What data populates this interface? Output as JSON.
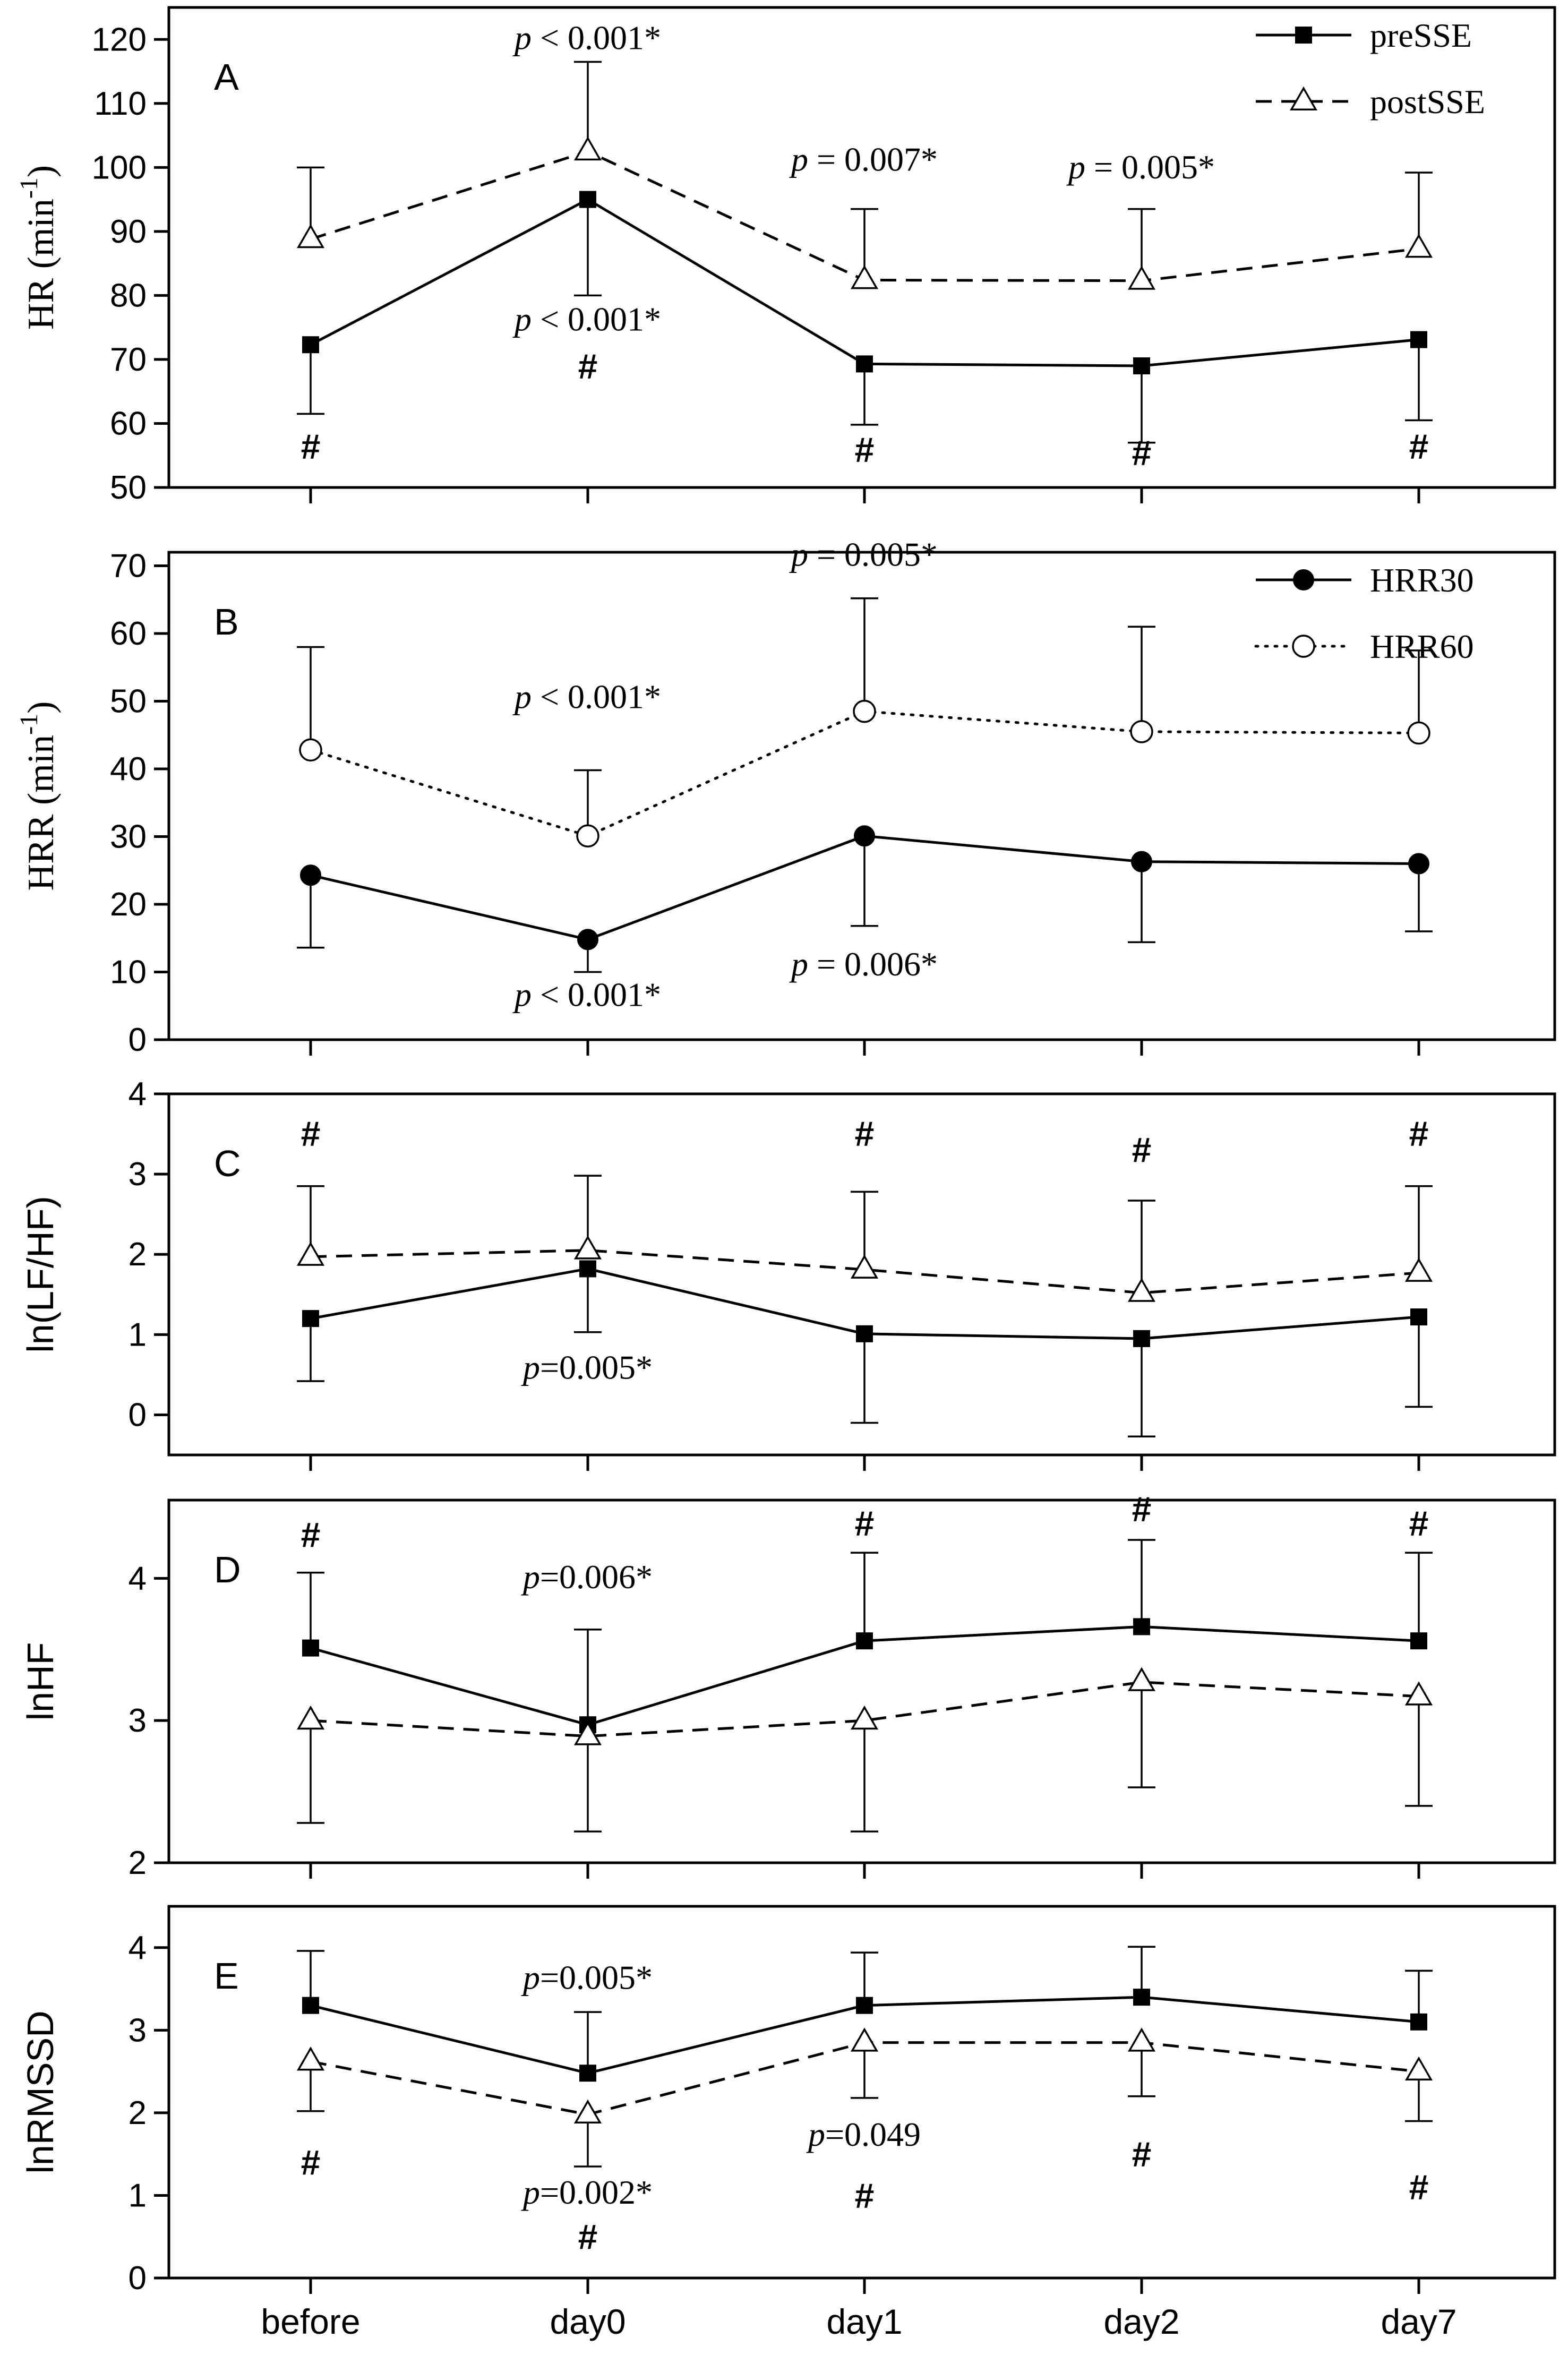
{
  "x_categories": [
    "before",
    "day0",
    "day1",
    "day2",
    "day7"
  ],
  "chart_data": [
    {
      "type": "line",
      "panel_label": "A",
      "ylabel": "HR (min",
      "ylabel_sup": "-1",
      "ylabel_close": ")",
      "ylim": [
        50,
        125
      ],
      "yticks": [
        50,
        60,
        70,
        80,
        90,
        100,
        110,
        120
      ],
      "categories": [
        "before",
        "day0",
        "day1",
        "day2",
        "day7"
      ],
      "series": [
        {
          "name": "preSSE",
          "marker": "square-filled",
          "dash": "solid",
          "values": [
            72.3,
            95,
            69.3,
            69,
            73.1
          ],
          "err_upper": [
            null,
            null,
            null,
            null,
            null
          ],
          "err_lower": [
            61.5,
            80,
            59.8,
            57,
            60.5
          ]
        },
        {
          "name": "postSSE",
          "marker": "triangle-open",
          "dash": "dashed",
          "values": [
            88.8,
            102.5,
            82.4,
            82.3,
            87.3
          ],
          "err_upper": [
            100,
            116.5,
            93.5,
            93.5,
            99.2
          ],
          "err_lower": [
            null,
            null,
            null,
            null,
            null
          ]
        }
      ],
      "legend": {
        "placement": "top-right",
        "entries": [
          "preSSE",
          "postSSE"
        ]
      },
      "annotations": [
        {
          "prefix": "p",
          "text": " < 0.001*",
          "x": 1,
          "y": 118.5
        },
        {
          "prefix": "p",
          "text": " = 0.007*",
          "x": 2,
          "y": 99.5
        },
        {
          "prefix": "p",
          "text": " = 0.005*",
          "x": 3,
          "y": 98.3
        },
        {
          "prefix": "p",
          "text": " < 0.001*",
          "x": 1,
          "y": 74.5
        },
        {
          "prefix": "",
          "text": "#",
          "x": 0,
          "y": 54.5
        },
        {
          "prefix": "",
          "text": "#",
          "x": 1,
          "y": 67
        },
        {
          "prefix": "",
          "text": "#",
          "x": 2,
          "y": 54
        },
        {
          "prefix": "",
          "text": "#",
          "x": 3,
          "y": 53.5
        },
        {
          "prefix": "",
          "text": "#",
          "x": 4,
          "y": 54.5
        }
      ]
    },
    {
      "type": "line",
      "panel_label": "B",
      "ylabel": "HRR (min",
      "ylabel_sup": "-1",
      "ylabel_close": ")",
      "ylim": [
        0,
        72
      ],
      "yticks": [
        0,
        10,
        20,
        30,
        40,
        50,
        60,
        70
      ],
      "categories": [
        "before",
        "day0",
        "day1",
        "day2",
        "day7"
      ],
      "series": [
        {
          "name": "HRR30",
          "marker": "circle-filled",
          "dash": "solid",
          "values": [
            24.3,
            14.8,
            30.1,
            26.3,
            26
          ],
          "err_upper": [
            null,
            null,
            null,
            null,
            null
          ],
          "err_lower": [
            13.6,
            10,
            16.8,
            14.4,
            16
          ]
        },
        {
          "name": "HRR60",
          "marker": "circle-open",
          "dash": "dotted",
          "values": [
            42.8,
            30.1,
            48.5,
            45.5,
            45.3
          ],
          "err_upper": [
            58,
            39.8,
            65.2,
            61,
            57.5
          ],
          "err_lower": [
            null,
            null,
            null,
            null,
            null
          ]
        }
      ],
      "legend": {
        "placement": "top-right",
        "entries": [
          "HRR30",
          "HRR60"
        ]
      },
      "annotations": [
        {
          "prefix": "p",
          "text": " = 0.005*",
          "x": 2,
          "y": 70
        },
        {
          "prefix": "p",
          "text": " < 0.001*",
          "x": 1,
          "y": 49
        },
        {
          "prefix": "p",
          "text": " < 0.001*",
          "x": 1,
          "y": 5
        },
        {
          "prefix": "p",
          "text": " = 0.006*",
          "x": 2,
          "y": 9.5
        }
      ]
    },
    {
      "type": "line",
      "panel_label": "C",
      "ylabel": "ln(LF/HF)",
      "ylim": [
        -0.5,
        4
      ],
      "yticks": [
        0,
        1,
        2,
        3,
        4
      ],
      "categories": [
        "before",
        "day0",
        "day1",
        "day2",
        "day7"
      ],
      "series": [
        {
          "name": "preSSE",
          "marker": "square-filled",
          "dash": "solid",
          "values": [
            1.2,
            1.82,
            1.01,
            0.95,
            1.22
          ],
          "err_upper": [
            null,
            null,
            null,
            null,
            null
          ],
          "err_lower": [
            0.42,
            1.03,
            -0.1,
            -0.27,
            0.1
          ]
        },
        {
          "name": "postSSE",
          "marker": "triangle-open",
          "dash": "dashed",
          "values": [
            1.97,
            2.05,
            1.81,
            1.52,
            1.77
          ],
          "err_upper": [
            2.85,
            2.98,
            2.78,
            2.67,
            2.85
          ],
          "err_lower": [
            null,
            null,
            null,
            null,
            null
          ]
        }
      ],
      "annotations": [
        {
          "prefix": "",
          "text": "#",
          "x": 0,
          "y": 3.35
        },
        {
          "prefix": "",
          "text": "#",
          "x": 2,
          "y": 3.35
        },
        {
          "prefix": "",
          "text": "#",
          "x": 3,
          "y": 3.15
        },
        {
          "prefix": "",
          "text": "#",
          "x": 4,
          "y": 3.35
        },
        {
          "prefix": "p",
          "text": "=0.005*",
          "x": 1,
          "y": 0.45
        }
      ]
    },
    {
      "type": "line",
      "panel_label": "D",
      "ylabel": "lnHF",
      "ylim": [
        2,
        4.55
      ],
      "yticks": [
        2,
        3,
        4
      ],
      "categories": [
        "before",
        "day0",
        "day1",
        "day2",
        "day7"
      ],
      "series": [
        {
          "name": "preSSE",
          "marker": "square-filled",
          "dash": "solid",
          "values": [
            3.51,
            2.97,
            3.56,
            3.66,
            3.56
          ],
          "err_upper": [
            4.04,
            3.64,
            4.18,
            4.27,
            4.18
          ],
          "err_lower": [
            null,
            null,
            null,
            null,
            null
          ]
        },
        {
          "name": "postSSE",
          "marker": "triangle-open",
          "dash": "dashed",
          "values": [
            3,
            2.89,
            3,
            3.27,
            3.17
          ],
          "err_upper": [
            null,
            null,
            null,
            null,
            null
          ],
          "err_lower": [
            2.28,
            2.22,
            2.22,
            2.53,
            2.4
          ]
        }
      ],
      "annotations": [
        {
          "prefix": "",
          "text": "#",
          "x": 0,
          "y": 4.22
        },
        {
          "prefix": "",
          "text": "#",
          "x": 2,
          "y": 4.3
        },
        {
          "prefix": "",
          "text": "#",
          "x": 3,
          "y": 4.4
        },
        {
          "prefix": "",
          "text": "#",
          "x": 4,
          "y": 4.3
        },
        {
          "prefix": "p",
          "text": "=0.006*",
          "x": 1,
          "y": 3.93
        }
      ]
    },
    {
      "type": "line",
      "panel_label": "E",
      "ylabel": "lnRMSSD",
      "ylim": [
        0,
        4.5
      ],
      "yticks": [
        0,
        1,
        2,
        3,
        4
      ],
      "categories": [
        "before",
        "day0",
        "day1",
        "day2",
        "day7"
      ],
      "series": [
        {
          "name": "preSSE",
          "marker": "square-filled",
          "dash": "solid",
          "values": [
            3.3,
            2.48,
            3.3,
            3.4,
            3.1
          ],
          "err_upper": [
            3.96,
            3.22,
            3.94,
            4.01,
            3.72
          ],
          "err_lower": [
            null,
            null,
            null,
            null,
            null
          ]
        },
        {
          "name": "postSSE",
          "marker": "triangle-open",
          "dash": "dashed",
          "values": [
            2.62,
            1.98,
            2.85,
            2.85,
            2.5
          ],
          "err_upper": [
            null,
            null,
            null,
            null,
            null
          ],
          "err_lower": [
            2.02,
            1.35,
            2.18,
            2.2,
            1.9
          ]
        }
      ],
      "annotations": [
        {
          "prefix": "p",
          "text": "=0.005*",
          "x": 1,
          "y": 3.5
        },
        {
          "prefix": "p",
          "text": "=0.049",
          "x": 2,
          "y": 1.6
        },
        {
          "prefix": "p",
          "text": "=0.002*",
          "x": 1,
          "y": 0.9
        },
        {
          "prefix": "",
          "text": "#",
          "x": 0,
          "y": 1.25
        },
        {
          "prefix": "",
          "text": "#",
          "x": 1,
          "y": 0.35
        },
        {
          "prefix": "",
          "text": "#",
          "x": 2,
          "y": 0.85
        },
        {
          "prefix": "",
          "text": "#",
          "x": 3,
          "y": 1.35
        },
        {
          "prefix": "",
          "text": "#",
          "x": 4,
          "y": 0.95
        }
      ]
    }
  ]
}
